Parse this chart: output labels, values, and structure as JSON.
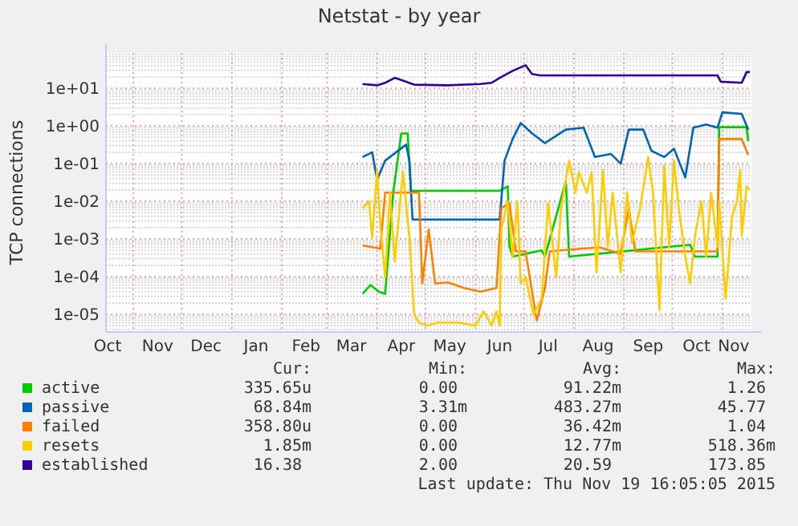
{
  "chart_data": {
    "type": "line",
    "title": "Netstat - by year",
    "ylabel": "TCP connections",
    "log": "y",
    "grid": true,
    "legend": "bottom",
    "line_style": "solid",
    "xlim": [
      "2014-10-15",
      "2015-11-19"
    ],
    "xticks": [
      {
        "value": "2014-10-16",
        "label": "Oct"
      },
      {
        "value": "2014-11-01",
        "label": null
      },
      {
        "value": "2014-11-16",
        "label": "Nov"
      },
      {
        "value": "2014-12-01",
        "label": null
      },
      {
        "value": "2014-12-16",
        "label": "Dec"
      },
      {
        "value": "2015-01-01",
        "label": null
      },
      {
        "value": "2015-01-16",
        "label": "Jan"
      },
      {
        "value": "2015-02-01",
        "label": null
      },
      {
        "value": "2015-02-16",
        "label": "Feb"
      },
      {
        "value": "2015-03-01",
        "label": null
      },
      {
        "value": "2015-03-16",
        "label": "Mar"
      },
      {
        "value": "2015-04-01",
        "label": null
      },
      {
        "value": "2015-04-16",
        "label": "Apr"
      },
      {
        "value": "2015-05-01",
        "label": null
      },
      {
        "value": "2015-05-16",
        "label": "May"
      },
      {
        "value": "2015-06-01",
        "label": null
      },
      {
        "value": "2015-06-16",
        "label": "Jun"
      },
      {
        "value": "2015-07-01",
        "label": null
      },
      {
        "value": "2015-07-16",
        "label": "Jul"
      },
      {
        "value": "2015-08-01",
        "label": null
      },
      {
        "value": "2015-08-16",
        "label": "Aug"
      },
      {
        "value": "2015-09-01",
        "label": null
      },
      {
        "value": "2015-09-16",
        "label": "Sep"
      },
      {
        "value": "2015-10-01",
        "label": null
      },
      {
        "value": "2015-10-16",
        "label": "Oct"
      },
      {
        "value": "2015-11-01",
        "label": null
      },
      {
        "value": "2015-11-08",
        "label": "Nov"
      }
    ],
    "ylim": [
      3.4e-06,
      87
    ],
    "yticks": [
      {
        "value": 1e-05,
        "label": "1e-05"
      },
      {
        "value": 0.0001,
        "label": "1e-04"
      },
      {
        "value": 0.001,
        "label": "1e-03"
      },
      {
        "value": 0.01,
        "label": "1e-02"
      },
      {
        "value": 0.1,
        "label": "1e-01"
      },
      {
        "value": 1,
        "label": "1e+00"
      },
      {
        "value": 10,
        "label": "1e+01"
      }
    ],
    "series": [
      {
        "name": "active",
        "color": "#00cc00",
        "x": [
          "2015-03-23",
          "2015-03-28",
          "2015-04-02",
          "2015-04-06",
          "2015-04-11",
          "2015-04-16",
          "2015-04-20",
          "2015-04-22",
          "2015-06-16",
          "2015-06-21",
          "2015-06-22",
          "2015-06-24",
          "2015-07-12",
          "2015-07-14",
          "2015-07-27",
          "2015-07-29",
          "2015-10-12",
          "2015-10-15",
          "2015-10-29",
          "2015-10-30",
          "2015-11-16",
          "2015-11-17"
        ],
        "values": [
          3.5e-05,
          6e-05,
          4e-05,
          3.5e-05,
          0.017,
          0.63,
          0.63,
          0.019,
          0.019,
          0.025,
          0.00066,
          0.00034,
          0.0005,
          0.00034,
          0.034,
          0.00034,
          0.0007,
          0.00034,
          0.00034,
          0.93,
          0.93,
          0.4
        ]
      },
      {
        "name": "passive",
        "color": "#0066b3",
        "x": [
          "2015-03-23",
          "2015-03-29",
          "2015-04-01",
          "2015-04-06",
          "2015-04-19",
          "2015-04-21",
          "2015-04-23",
          "2015-06-16",
          "2015-06-19",
          "2015-06-24",
          "2015-06-29",
          "2015-07-06",
          "2015-07-14",
          "2015-07-21",
          "2015-07-27",
          "2015-08-07",
          "2015-08-14",
          "2015-08-24",
          "2015-08-30",
          "2015-09-04",
          "2015-09-13",
          "2015-09-18",
          "2015-09-26",
          "2015-10-02",
          "2015-10-09",
          "2015-10-14",
          "2015-10-22",
          "2015-10-29",
          "2015-11-01",
          "2015-11-13",
          "2015-11-17"
        ],
        "values": [
          0.15,
          0.2,
          0.037,
          0.12,
          0.32,
          0.12,
          0.0033,
          0.0033,
          0.12,
          0.45,
          1.2,
          0.64,
          0.35,
          0.55,
          0.8,
          0.9,
          0.15,
          0.18,
          0.1,
          0.8,
          0.8,
          0.22,
          0.15,
          0.25,
          0.043,
          0.9,
          1.1,
          0.9,
          2.3,
          2.1,
          0.8
        ]
      },
      {
        "name": "failed",
        "color": "#ff8000",
        "x": [
          "2015-03-23",
          "2015-04-03",
          "2015-04-06",
          "2015-04-27",
          "2015-04-29",
          "2015-05-03",
          "2015-05-07",
          "2015-05-15",
          "2015-05-25",
          "2015-06-04",
          "2015-06-14",
          "2015-06-17",
          "2015-06-22",
          "2015-06-26",
          "2015-07-02",
          "2015-07-09",
          "2015-07-14",
          "2015-07-17",
          "2015-07-31",
          "2015-08-17",
          "2015-08-30",
          "2015-09-04",
          "2015-09-08",
          "2015-10-29",
          "2015-10-30",
          "2015-11-13",
          "2015-11-17"
        ],
        "values": [
          0.00068,
          0.00055,
          0.017,
          0.017,
          6.6e-05,
          0.0018,
          6.6e-05,
          7e-05,
          5e-05,
          4e-05,
          5e-05,
          0.0065,
          0.009,
          0.00047,
          0.00047,
          6.8e-06,
          5e-05,
          0.00047,
          0.00053,
          0.0006,
          0.0004,
          0.0065,
          0.00047,
          0.00047,
          0.45,
          0.45,
          0.17
        ]
      },
      {
        "name": "resets",
        "color": "#ffcc00",
        "x": [
          "2015-03-23",
          "2015-03-27",
          "2015-03-29",
          "2015-04-01",
          "2015-04-03",
          "2015-04-06",
          "2015-04-09",
          "2015-04-12",
          "2015-04-17",
          "2015-04-21",
          "2015-04-24",
          "2015-04-27",
          "2015-05-02",
          "2015-05-08",
          "2015-05-22",
          "2015-06-01",
          "2015-06-06",
          "2015-06-11",
          "2015-06-14",
          "2015-06-16",
          "2015-06-17",
          "2015-06-21",
          "2015-06-24",
          "2015-06-27",
          "2015-06-29",
          "2015-07-02",
          "2015-07-07",
          "2015-07-12",
          "2015-07-16",
          "2015-07-21",
          "2015-07-24",
          "2015-07-29",
          "2015-08-02",
          "2015-08-04",
          "2015-08-09",
          "2015-08-12",
          "2015-08-15",
          "2015-08-19",
          "2015-08-22",
          "2015-08-25",
          "2015-08-30",
          "2015-09-03",
          "2015-09-06",
          "2015-09-11",
          "2015-09-16",
          "2015-09-19",
          "2015-09-23",
          "2015-09-26",
          "2015-09-29",
          "2015-10-02",
          "2015-10-05",
          "2015-10-09",
          "2015-10-12",
          "2015-10-15",
          "2015-10-19",
          "2015-10-22",
          "2015-10-25",
          "2015-10-29",
          "2015-10-30",
          "2015-11-03",
          "2015-11-07",
          "2015-11-10",
          "2015-11-12",
          "2015-11-13",
          "2015-11-16",
          "2015-11-18"
        ],
        "values": [
          0.0065,
          0.01,
          0.0011,
          0.068,
          0.0024,
          9.6e-05,
          0.017,
          0.00025,
          0.063,
          0.0012,
          9.7e-06,
          6e-06,
          5e-06,
          6e-06,
          6e-06,
          5e-06,
          1.2e-05,
          5e-06,
          1.2e-05,
          5e-06,
          0.0018,
          0.01,
          0.00034,
          0.01,
          6.6e-05,
          9.6e-05,
          9.7e-06,
          2.6e-05,
          0.0089,
          9.6e-05,
          0.0065,
          0.12,
          0.017,
          0.06,
          0.017,
          0.06,
          0.00013,
          0.068,
          0.0006,
          0.017,
          0.00013,
          0.017,
          0.0008,
          0.0065,
          0.15,
          0.017,
          1.3e-05,
          0.09,
          0.0006,
          0.12,
          0.0065,
          0.00034,
          6.6e-05,
          0.0012,
          0.01,
          0.00034,
          0.017,
          0.0006,
          0.01,
          2.6e-05,
          0.004,
          0.01,
          0.068,
          0.0012,
          0.025,
          0.02
        ]
      },
      {
        "name": "established",
        "color": "#330099",
        "x": [
          "2015-03-23",
          "2015-04-01",
          "2015-04-06",
          "2015-04-12",
          "2015-04-24",
          "2015-05-15",
          "2015-06-04",
          "2015-06-11",
          "2015-06-16",
          "2015-06-24",
          "2015-07-02",
          "2015-07-06",
          "2015-07-11",
          "2015-10-29",
          "2015-10-31",
          "2015-11-13",
          "2015-11-16",
          "2015-11-18"
        ],
        "values": [
          13,
          12,
          14,
          19,
          12.5,
          12,
          13,
          14,
          19,
          29,
          41,
          24,
          22,
          22,
          15,
          14,
          27,
          27
        ]
      }
    ],
    "annotations": [
      "Cur:",
      "Min:",
      "Avg:",
      "Max:",
      "335.65u",
      "0.00",
      "91.22m",
      "1.26",
      "68.84m",
      "3.31m",
      "483.27m",
      "45.77",
      "358.80u",
      "0.00",
      "36.42m",
      "1.04",
      "1.85m",
      "0.00",
      "12.77m",
      "518.36m",
      "16.38",
      "2.00",
      "20.59",
      "173.85",
      "Last update: Thu Nov 19 16:05:05 2015"
    ]
  }
}
